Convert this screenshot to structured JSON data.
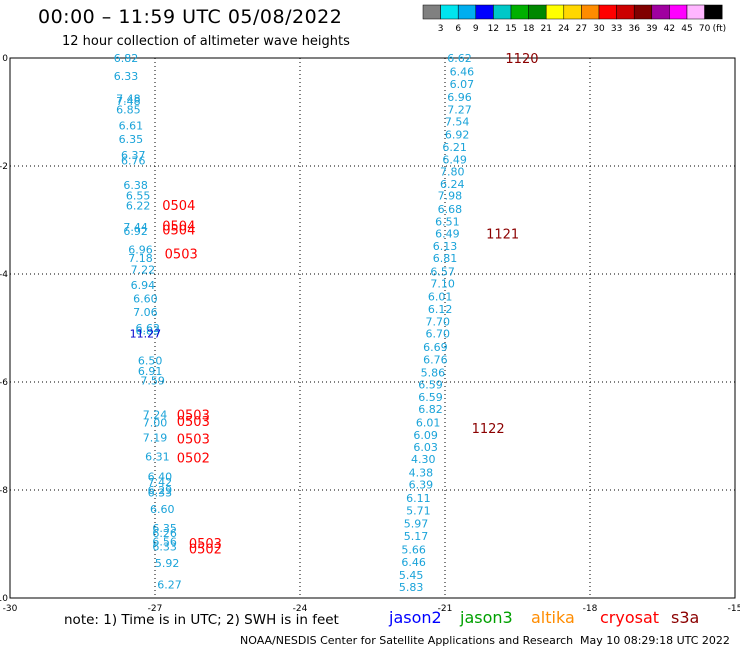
{
  "header": {
    "title": "00:00 – 11:59 UTC 05/08/2022",
    "subtitle": "12 hour collection of altimeter wave heights"
  },
  "footer": {
    "note": "note:  1) Time is in UTC;  2) SWH is in feet",
    "credit": "NOAA/NESDIS Center for Satellite Applications and Research",
    "timestamp": "May 10 08:29:18 UTC 2022"
  },
  "legend": {
    "satellites": [
      {
        "name": "jason2",
        "color": "#0000ff"
      },
      {
        "name": "jason3",
        "color": "#00a000"
      },
      {
        "name": "altika",
        "color": "#ff8c00"
      },
      {
        "name": "cryosat",
        "color": "#ff0000"
      },
      {
        "name": "s3a",
        "color": "#8b0000"
      }
    ]
  },
  "color_scale": {
    "labels": [
      "3",
      "6",
      "9",
      "12",
      "15",
      "18",
      "21",
      "24",
      "27",
      "30",
      "33",
      "36",
      "39",
      "42",
      "45",
      "70"
    ],
    "unit": "(ft)",
    "colors": [
      "#808080",
      "#00e5ee",
      "#00aeef",
      "#0000ff",
      "#00c8c8",
      "#00b000",
      "#008800",
      "#ffff00",
      "#ffd700",
      "#ff8c00",
      "#ff0000",
      "#cc0000",
      "#800000",
      "#a000a0",
      "#ff00ff",
      "#ffb6ff",
      "#000000"
    ]
  },
  "chart_data": {
    "type": "scatter",
    "xlim": [
      -30,
      -15
    ],
    "ylim": [
      -10,
      0
    ],
    "x_ticks": [
      -30,
      -27,
      -24,
      -21,
      -18,
      -15
    ],
    "y_ticks": [
      0,
      -2,
      -4,
      -6,
      -8,
      -10
    ],
    "grid": true,
    "swh_labels": [
      {
        "x": -27.6,
        "y": 0.0,
        "v": "6.82"
      },
      {
        "x": -27.6,
        "y": -0.33,
        "v": "6.33"
      },
      {
        "x": -27.55,
        "y": -0.75,
        "v": "7.48"
      },
      {
        "x": -27.55,
        "y": -0.8,
        "v": "7.48"
      },
      {
        "x": -27.55,
        "y": -0.95,
        "v": "6.85"
      },
      {
        "x": -27.5,
        "y": -1.25,
        "v": "6.61"
      },
      {
        "x": -27.5,
        "y": -1.5,
        "v": "6.35"
      },
      {
        "x": -27.45,
        "y": -1.8,
        "v": "6.37"
      },
      {
        "x": -27.45,
        "y": -1.9,
        "v": "6.76"
      },
      {
        "x": -27.4,
        "y": -2.35,
        "v": "6.38"
      },
      {
        "x": -27.35,
        "y": -2.55,
        "v": "6.55"
      },
      {
        "x": -27.35,
        "y": -2.73,
        "v": "6.22"
      },
      {
        "x": -27.4,
        "y": -3.13,
        "v": "7.44"
      },
      {
        "x": -27.4,
        "y": -3.2,
        "v": "6.92"
      },
      {
        "x": -27.3,
        "y": -3.55,
        "v": "6.96"
      },
      {
        "x": -27.3,
        "y": -3.7,
        "v": "7.18"
      },
      {
        "x": -27.25,
        "y": -3.92,
        "v": "7.22"
      },
      {
        "x": -27.25,
        "y": -4.2,
        "v": "6.94"
      },
      {
        "x": -27.2,
        "y": -4.45,
        "v": "6.60"
      },
      {
        "x": -27.2,
        "y": -4.7,
        "v": "7.06"
      },
      {
        "x": -27.15,
        "y": -5.0,
        "v": "6.62"
      },
      {
        "x": -27.15,
        "y": -5.05,
        "v": "6.83"
      },
      {
        "x": -27.1,
        "y": -5.6,
        "v": "6.50"
      },
      {
        "x": -27.1,
        "y": -5.8,
        "v": "6.91"
      },
      {
        "x": -27.05,
        "y": -5.97,
        "v": "7.59"
      },
      {
        "x": -27.0,
        "y": -6.6,
        "v": "7.24"
      },
      {
        "x": -27.0,
        "y": -6.75,
        "v": "7.00"
      },
      {
        "x": -27.0,
        "y": -7.03,
        "v": "7.19"
      },
      {
        "x": -26.95,
        "y": -7.38,
        "v": "6.31"
      },
      {
        "x": -26.9,
        "y": -7.75,
        "v": "6.40"
      },
      {
        "x": -26.9,
        "y": -7.85,
        "v": "7.42"
      },
      {
        "x": -26.9,
        "y": -8.0,
        "v": "6.29"
      },
      {
        "x": -26.9,
        "y": -8.05,
        "v": "6.33"
      },
      {
        "x": -26.85,
        "y": -8.35,
        "v": "6.60"
      },
      {
        "x": -26.8,
        "y": -8.7,
        "v": "6.35"
      },
      {
        "x": -26.8,
        "y": -8.8,
        "v": "6.26"
      },
      {
        "x": -26.8,
        "y": -8.95,
        "v": "6.56"
      },
      {
        "x": -26.8,
        "y": -9.05,
        "v": "6.33"
      },
      {
        "x": -26.75,
        "y": -9.35,
        "v": "5.92"
      },
      {
        "x": -26.7,
        "y": -9.75,
        "v": "6.27"
      },
      {
        "x": -20.7,
        "y": 0.0,
        "v": "6.62"
      },
      {
        "x": -20.65,
        "y": -0.25,
        "v": "6.46"
      },
      {
        "x": -20.65,
        "y": -0.48,
        "v": "6.07"
      },
      {
        "x": -20.7,
        "y": -0.72,
        "v": "6.96"
      },
      {
        "x": -20.7,
        "y": -0.95,
        "v": "7.27"
      },
      {
        "x": -20.75,
        "y": -1.18,
        "v": "7.54"
      },
      {
        "x": -20.75,
        "y": -1.42,
        "v": "6.92"
      },
      {
        "x": -20.8,
        "y": -1.65,
        "v": "6.21"
      },
      {
        "x": -20.8,
        "y": -1.88,
        "v": "6.49"
      },
      {
        "x": -20.85,
        "y": -2.1,
        "v": "7.80"
      },
      {
        "x": -20.85,
        "y": -2.33,
        "v": "6.24"
      },
      {
        "x": -20.9,
        "y": -2.55,
        "v": "7.98"
      },
      {
        "x": -20.9,
        "y": -2.8,
        "v": "6.68"
      },
      {
        "x": -20.95,
        "y": -3.03,
        "v": "6.51"
      },
      {
        "x": -20.95,
        "y": -3.25,
        "v": "6.49"
      },
      {
        "x": -21.0,
        "y": -3.48,
        "v": "6.13"
      },
      {
        "x": -21.0,
        "y": -3.7,
        "v": "6.81"
      },
      {
        "x": -21.05,
        "y": -3.95,
        "v": "6.57"
      },
      {
        "x": -21.05,
        "y": -4.18,
        "v": "7.10"
      },
      {
        "x": -21.1,
        "y": -4.42,
        "v": "6.01"
      },
      {
        "x": -21.1,
        "y": -4.65,
        "v": "6.12"
      },
      {
        "x": -21.15,
        "y": -4.88,
        "v": "7.70"
      },
      {
        "x": -21.15,
        "y": -5.1,
        "v": "6.70"
      },
      {
        "x": -21.2,
        "y": -5.35,
        "v": "6.69"
      },
      {
        "x": -21.2,
        "y": -5.58,
        "v": "6.76"
      },
      {
        "x": -21.25,
        "y": -5.82,
        "v": "5.86"
      },
      {
        "x": -21.3,
        "y": -6.05,
        "v": "6.59"
      },
      {
        "x": -21.3,
        "y": -6.28,
        "v": "6.59"
      },
      {
        "x": -21.3,
        "y": -6.5,
        "v": "6.82"
      },
      {
        "x": -21.35,
        "y": -6.75,
        "v": "6.01"
      },
      {
        "x": -21.4,
        "y": -6.98,
        "v": "6.09"
      },
      {
        "x": -21.4,
        "y": -7.2,
        "v": "6.03"
      },
      {
        "x": -21.45,
        "y": -7.43,
        "v": "4.30"
      },
      {
        "x": -21.5,
        "y": -7.68,
        "v": "4.38"
      },
      {
        "x": -21.5,
        "y": -7.9,
        "v": "6.39"
      },
      {
        "x": -21.55,
        "y": -8.15,
        "v": "6.11"
      },
      {
        "x": -21.55,
        "y": -8.38,
        "v": "5.71"
      },
      {
        "x": -21.6,
        "y": -8.62,
        "v": "5.97"
      },
      {
        "x": -21.6,
        "y": -8.85,
        "v": "5.17"
      },
      {
        "x": -21.65,
        "y": -9.1,
        "v": "5.66"
      },
      {
        "x": -21.65,
        "y": -9.33,
        "v": "6.46"
      },
      {
        "x": -21.7,
        "y": -9.57,
        "v": "5.45"
      },
      {
        "x": -21.7,
        "y": -9.8,
        "v": "5.83"
      }
    ],
    "swh_highlight": [
      {
        "x": -27.2,
        "y": -5.1,
        "v": "11.27"
      }
    ],
    "time_labels": [
      {
        "x": -26.85,
        "y": -2.72,
        "v": "0504",
        "sat": "cryosat"
      },
      {
        "x": -26.85,
        "y": -3.1,
        "v": "0504",
        "sat": "cryosat"
      },
      {
        "x": -26.85,
        "y": -3.18,
        "v": "0504",
        "sat": "cryosat"
      },
      {
        "x": -26.8,
        "y": -3.62,
        "v": "0503",
        "sat": "cryosat"
      },
      {
        "x": -26.55,
        "y": -6.6,
        "v": "0503",
        "sat": "cryosat"
      },
      {
        "x": -26.55,
        "y": -6.72,
        "v": "0503",
        "sat": "cryosat"
      },
      {
        "x": -26.55,
        "y": -7.05,
        "v": "0503",
        "sat": "cryosat"
      },
      {
        "x": -26.55,
        "y": -7.4,
        "v": "0502",
        "sat": "cryosat"
      },
      {
        "x": -26.3,
        "y": -8.98,
        "v": "0503",
        "sat": "cryosat"
      },
      {
        "x": -26.3,
        "y": -9.08,
        "v": "0502",
        "sat": "cryosat"
      },
      {
        "x": -19.75,
        "y": 0.0,
        "v": "1120",
        "sat": "s3a"
      },
      {
        "x": -20.15,
        "y": -3.25,
        "v": "1121",
        "sat": "s3a"
      },
      {
        "x": -20.45,
        "y": -6.85,
        "v": "1122",
        "sat": "s3a"
      }
    ]
  }
}
